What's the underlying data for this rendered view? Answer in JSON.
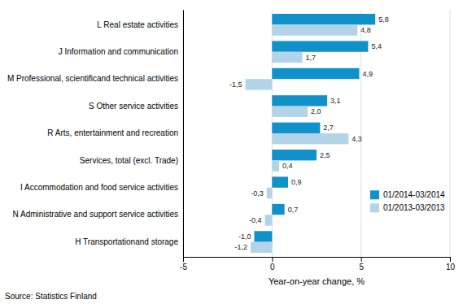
{
  "chart_data": {
    "type": "bar",
    "orientation": "horizontal",
    "categories": [
      "H Transportationand storage",
      "N Administrative and support service activities",
      "I Accommodation and food service activities",
      "Services, total (excl. Trade)",
      "R Arts, entertainment and recreation",
      "S Other service activities",
      "M Professional, scientificand technical activities",
      "J Information and communication",
      "L Real estate activities"
    ],
    "series": [
      {
        "name": "01/2014-03/2014",
        "color": "#1191c9",
        "values": [
          -1.0,
          0.7,
          0.9,
          2.5,
          2.7,
          3.1,
          4.9,
          5.4,
          5.8
        ],
        "value_labels": [
          "-1,0",
          "0,7",
          "0,9",
          "2,5",
          "2,7",
          "3,1",
          "4,9",
          "5,4",
          "5,8"
        ]
      },
      {
        "name": "01/2013-03/2013",
        "color": "#b3d4e8",
        "values": [
          -1.2,
          -0.4,
          -0.3,
          0.4,
          4.3,
          2.0,
          -1.5,
          1.7,
          4.8
        ],
        "value_labels": [
          "-1,2",
          "-0,4",
          "-0,3",
          "0,4",
          "4,3",
          "2,0",
          "-1,5",
          "1,7",
          "4,8"
        ]
      }
    ],
    "xlabel": "Year-on-year change, %",
    "xlim": [
      -5,
      10
    ],
    "xticks": [
      -5,
      0,
      5,
      10
    ],
    "grid": true,
    "legend": "lower right",
    "data_labels": true,
    "annotations": [
      "Source: Statistics Finland"
    ]
  }
}
